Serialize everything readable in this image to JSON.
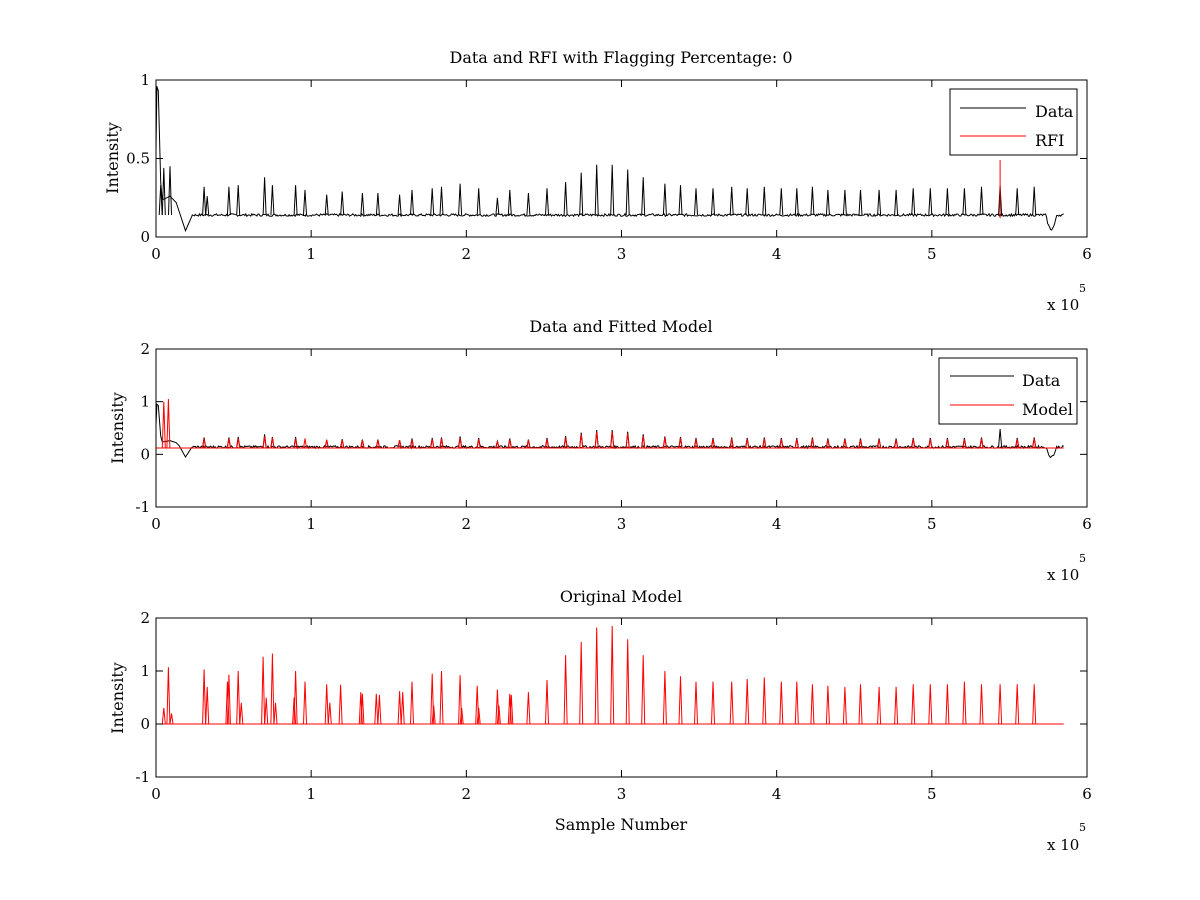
{
  "figure": {
    "background": "#ffffff"
  },
  "colors": {
    "data": "#000000",
    "rfi": "#ff0000",
    "model": "#ff0000",
    "axes": "#000000"
  },
  "chart_data": [
    {
      "type": "line",
      "title": "Data and RFI with Flagging Percentage: 0",
      "xlabel": "",
      "ylabel": "Intensity",
      "xlim": [
        0,
        6
      ],
      "ylim": [
        0,
        1
      ],
      "x_multiplier": "x 10",
      "x_multiplier_exp": "5",
      "xticks": [
        "0",
        "1",
        "2",
        "3",
        "4",
        "5",
        "6"
      ],
      "yticks": [
        "0",
        "0.5",
        "1"
      ],
      "ytick_values": [
        0,
        0.5,
        1
      ],
      "grid": false,
      "legend": {
        "placement": "top-right",
        "entries": [
          {
            "label": "Data",
            "color": "#000000"
          },
          {
            "label": "RFI",
            "color": "#ff0000"
          }
        ]
      },
      "series": [
        {
          "name": "Data",
          "color": "#000000",
          "baseline": 0.14,
          "x_end": 5.85,
          "peaks": [
            [
              0.03,
              0.33
            ],
            [
              0.05,
              0.44
            ],
            [
              0.09,
              0.45
            ],
            [
              0.31,
              0.32
            ],
            [
              0.33,
              0.26
            ],
            [
              0.47,
              0.32
            ],
            [
              0.53,
              0.33
            ],
            [
              0.7,
              0.38
            ],
            [
              0.75,
              0.33
            ],
            [
              0.9,
              0.33
            ],
            [
              0.96,
              0.3
            ],
            [
              1.1,
              0.27
            ],
            [
              1.2,
              0.29
            ],
            [
              1.33,
              0.28
            ],
            [
              1.43,
              0.28
            ],
            [
              1.57,
              0.27
            ],
            [
              1.65,
              0.3
            ],
            [
              1.78,
              0.31
            ],
            [
              1.84,
              0.32
            ],
            [
              1.96,
              0.34
            ],
            [
              2.08,
              0.31
            ],
            [
              2.2,
              0.25
            ],
            [
              2.28,
              0.3
            ],
            [
              2.4,
              0.28
            ],
            [
              2.52,
              0.31
            ],
            [
              2.64,
              0.35
            ],
            [
              2.74,
              0.41
            ],
            [
              2.84,
              0.46
            ],
            [
              2.94,
              0.46
            ],
            [
              3.04,
              0.43
            ],
            [
              3.14,
              0.38
            ],
            [
              3.28,
              0.34
            ],
            [
              3.38,
              0.33
            ],
            [
              3.48,
              0.31
            ],
            [
              3.59,
              0.31
            ],
            [
              3.71,
              0.32
            ],
            [
              3.81,
              0.31
            ],
            [
              3.92,
              0.32
            ],
            [
              4.03,
              0.31
            ],
            [
              4.13,
              0.31
            ],
            [
              4.23,
              0.32
            ],
            [
              4.33,
              0.3
            ],
            [
              4.44,
              0.3
            ],
            [
              4.54,
              0.3
            ],
            [
              4.66,
              0.3
            ],
            [
              4.77,
              0.3
            ],
            [
              4.88,
              0.31
            ],
            [
              4.99,
              0.31
            ],
            [
              5.1,
              0.31
            ],
            [
              5.21,
              0.31
            ],
            [
              5.32,
              0.32
            ],
            [
              5.44,
              0.33
            ],
            [
              5.55,
              0.31
            ],
            [
              5.66,
              0.32
            ]
          ],
          "dips": [
            [
              0.19,
              0.04
            ],
            [
              5.77,
              0.05
            ]
          ]
        },
        {
          "name": "RFI",
          "color": "#ff0000",
          "spikes": [
            [
              5.44,
              0.49
            ]
          ]
        }
      ]
    },
    {
      "type": "line",
      "title": "Data and Fitted Model",
      "xlabel": "",
      "ylabel": "Intensity",
      "xlim": [
        0,
        6
      ],
      "ylim": [
        -1,
        2
      ],
      "x_multiplier": "x 10",
      "x_multiplier_exp": "5",
      "xticks": [
        "0",
        "1",
        "2",
        "3",
        "4",
        "5",
        "6"
      ],
      "yticks": [
        "-1",
        "0",
        "1",
        "2"
      ],
      "ytick_values": [
        -1,
        0,
        1,
        2
      ],
      "grid": false,
      "legend": {
        "placement": "top-right",
        "entries": [
          {
            "label": "Data",
            "color": "#000000"
          },
          {
            "label": "Model",
            "color": "#ff0000"
          }
        ]
      },
      "series": [
        {
          "name": "Data",
          "color": "#000000",
          "baseline": 0.14,
          "x_end": 5.85,
          "peaks": [
            [
              0.31,
              0.32
            ],
            [
              0.47,
              0.32
            ],
            [
              0.53,
              0.33
            ],
            [
              0.7,
              0.38
            ],
            [
              0.75,
              0.33
            ],
            [
              0.9,
              0.33
            ],
            [
              1.1,
              0.27
            ],
            [
              1.2,
              0.29
            ],
            [
              1.33,
              0.28
            ],
            [
              1.43,
              0.28
            ],
            [
              1.57,
              0.27
            ],
            [
              1.65,
              0.3
            ],
            [
              1.78,
              0.31
            ],
            [
              1.84,
              0.32
            ],
            [
              1.96,
              0.34
            ],
            [
              2.08,
              0.31
            ],
            [
              2.2,
              0.25
            ],
            [
              2.28,
              0.3
            ],
            [
              2.4,
              0.28
            ],
            [
              2.52,
              0.31
            ],
            [
              2.64,
              0.35
            ],
            [
              2.74,
              0.41
            ],
            [
              2.84,
              0.46
            ],
            [
              2.94,
              0.46
            ],
            [
              3.04,
              0.43
            ],
            [
              3.14,
              0.38
            ],
            [
              3.28,
              0.34
            ],
            [
              3.38,
              0.33
            ],
            [
              3.48,
              0.31
            ],
            [
              3.59,
              0.31
            ],
            [
              3.71,
              0.32
            ],
            [
              3.81,
              0.31
            ],
            [
              3.92,
              0.32
            ],
            [
              4.03,
              0.31
            ],
            [
              4.13,
              0.31
            ],
            [
              4.23,
              0.32
            ],
            [
              4.33,
              0.3
            ],
            [
              4.44,
              0.3
            ],
            [
              4.54,
              0.3
            ],
            [
              4.66,
              0.3
            ],
            [
              4.77,
              0.3
            ],
            [
              4.88,
              0.31
            ],
            [
              4.99,
              0.31
            ],
            [
              5.1,
              0.31
            ],
            [
              5.21,
              0.31
            ],
            [
              5.32,
              0.32
            ],
            [
              5.44,
              0.48
            ],
            [
              5.55,
              0.31
            ],
            [
              5.66,
              0.32
            ]
          ],
          "dips": [
            [
              0.19,
              -0.05
            ],
            [
              5.77,
              -0.04
            ]
          ]
        },
        {
          "name": "Model",
          "color": "#ff0000",
          "baseline": 0.12,
          "x_end": 5.85,
          "spikes": [
            [
              0.05,
              1.0
            ],
            [
              0.08,
              1.05
            ],
            [
              0.31,
              0.3
            ],
            [
              0.47,
              0.3
            ],
            [
              0.53,
              0.3
            ],
            [
              0.7,
              0.34
            ],
            [
              0.75,
              0.32
            ],
            [
              0.9,
              0.3
            ],
            [
              0.96,
              0.3
            ],
            [
              1.1,
              0.28
            ],
            [
              1.2,
              0.28
            ],
            [
              1.33,
              0.27
            ],
            [
              1.43,
              0.27
            ],
            [
              1.57,
              0.27
            ],
            [
              1.65,
              0.28
            ],
            [
              1.78,
              0.29
            ],
            [
              1.84,
              0.3
            ],
            [
              1.96,
              0.31
            ],
            [
              2.08,
              0.29
            ],
            [
              2.2,
              0.25
            ],
            [
              2.28,
              0.28
            ],
            [
              2.4,
              0.27
            ],
            [
              2.52,
              0.29
            ],
            [
              2.64,
              0.32
            ],
            [
              2.74,
              0.38
            ],
            [
              2.84,
              0.43
            ],
            [
              2.94,
              0.43
            ],
            [
              3.04,
              0.4
            ],
            [
              3.14,
              0.35
            ],
            [
              3.28,
              0.32
            ],
            [
              3.38,
              0.31
            ],
            [
              3.48,
              0.29
            ],
            [
              3.59,
              0.29
            ],
            [
              3.71,
              0.3
            ],
            [
              3.81,
              0.29
            ],
            [
              3.92,
              0.3
            ],
            [
              4.03,
              0.29
            ],
            [
              4.13,
              0.29
            ],
            [
              4.23,
              0.3
            ],
            [
              4.33,
              0.28
            ],
            [
              4.44,
              0.28
            ],
            [
              4.54,
              0.28
            ],
            [
              4.66,
              0.28
            ],
            [
              4.77,
              0.28
            ],
            [
              4.88,
              0.29
            ],
            [
              4.99,
              0.29
            ],
            [
              5.1,
              0.29
            ],
            [
              5.21,
              0.29
            ],
            [
              5.32,
              0.3
            ],
            [
              5.55,
              0.29
            ],
            [
              5.66,
              0.3
            ]
          ]
        }
      ]
    },
    {
      "type": "line",
      "title": "Original Model",
      "xlabel": "Sample Number",
      "ylabel": "Intensity",
      "xlim": [
        0,
        6
      ],
      "ylim": [
        -1,
        2
      ],
      "x_multiplier": "x 10",
      "x_multiplier_exp": "5",
      "xticks": [
        "0",
        "1",
        "2",
        "3",
        "4",
        "5",
        "6"
      ],
      "yticks": [
        "-1",
        "0",
        "1",
        "2"
      ],
      "ytick_values": [
        -1,
        0,
        1,
        2
      ],
      "grid": false,
      "series": [
        {
          "name": "",
          "color": "#ff0000",
          "baseline": 0,
          "x_start": 0.03,
          "x_end": 5.85,
          "spikes": [
            [
              0.05,
              0.3
            ],
            [
              0.08,
              1.07
            ],
            [
              0.1,
              0.2
            ],
            [
              0.31,
              1.03
            ],
            [
              0.33,
              0.7
            ],
            [
              0.46,
              0.8
            ],
            [
              0.47,
              0.93
            ],
            [
              0.53,
              1.0
            ],
            [
              0.55,
              0.4
            ],
            [
              0.69,
              1.27
            ],
            [
              0.71,
              0.5
            ],
            [
              0.75,
              1.33
            ],
            [
              0.77,
              0.4
            ],
            [
              0.89,
              0.5
            ],
            [
              0.9,
              1.0
            ],
            [
              0.96,
              0.8
            ],
            [
              1.1,
              0.75
            ],
            [
              1.12,
              0.4
            ],
            [
              1.19,
              0.74
            ],
            [
              1.32,
              0.6
            ],
            [
              1.33,
              0.57
            ],
            [
              1.42,
              0.57
            ],
            [
              1.44,
              0.55
            ],
            [
              1.57,
              0.62
            ],
            [
              1.59,
              0.6
            ],
            [
              1.65,
              0.8
            ],
            [
              1.78,
              0.95
            ],
            [
              1.79,
              0.35
            ],
            [
              1.84,
              1.0
            ],
            [
              1.96,
              0.92
            ],
            [
              1.97,
              0.3
            ],
            [
              2.07,
              0.72
            ],
            [
              2.08,
              0.3
            ],
            [
              2.2,
              0.65
            ],
            [
              2.21,
              0.35
            ],
            [
              2.28,
              0.57
            ],
            [
              2.29,
              0.55
            ],
            [
              2.4,
              0.6
            ],
            [
              2.52,
              0.83
            ],
            [
              2.64,
              1.3
            ],
            [
              2.74,
              1.55
            ],
            [
              2.84,
              1.82
            ],
            [
              2.94,
              1.85
            ],
            [
              3.04,
              1.6
            ],
            [
              3.14,
              1.3
            ],
            [
              3.28,
              1.0
            ],
            [
              3.38,
              0.9
            ],
            [
              3.48,
              0.8
            ],
            [
              3.59,
              0.8
            ],
            [
              3.71,
              0.8
            ],
            [
              3.81,
              0.85
            ],
            [
              3.92,
              0.88
            ],
            [
              4.03,
              0.8
            ],
            [
              4.13,
              0.8
            ],
            [
              4.23,
              0.75
            ],
            [
              4.33,
              0.72
            ],
            [
              4.44,
              0.7
            ],
            [
              4.54,
              0.75
            ],
            [
              4.66,
              0.7
            ],
            [
              4.77,
              0.7
            ],
            [
              4.88,
              0.75
            ],
            [
              4.99,
              0.75
            ],
            [
              5.1,
              0.75
            ],
            [
              5.21,
              0.8
            ],
            [
              5.32,
              0.75
            ],
            [
              5.44,
              0.75
            ],
            [
              5.55,
              0.75
            ],
            [
              5.66,
              0.75
            ]
          ]
        }
      ]
    }
  ]
}
